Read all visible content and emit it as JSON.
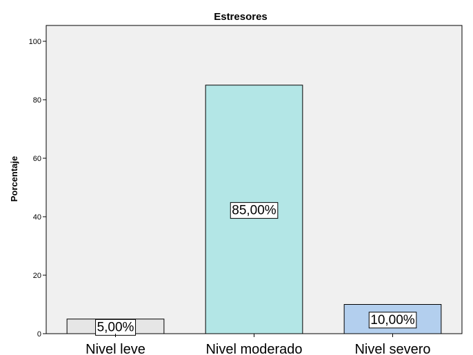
{
  "chart_data": {
    "type": "bar",
    "title": "Estresores",
    "xlabel": "",
    "ylabel": "Porcentaje",
    "categories": [
      "Nivel leve",
      "Nivel moderado",
      "Nivel severo"
    ],
    "values": [
      5,
      85,
      10
    ],
    "data_labels": [
      "5,00%",
      "85,00%",
      "10,00%"
    ],
    "colors": [
      "#e6e6e6",
      "#b3e6e6",
      "#b3cfee"
    ],
    "ylim": [
      0,
      100
    ],
    "yticks": [
      0,
      20,
      40,
      60,
      80,
      100
    ],
    "plot_background": "#f0f0f0",
    "grid": false,
    "legend": "none"
  }
}
